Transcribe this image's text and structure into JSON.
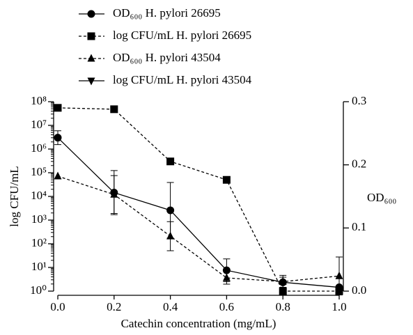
{
  "chart_data": {
    "type": "line",
    "xlabel": "Catechin concentration (mg/mL)",
    "ylabel": "log CFU/mL",
    "y2label": "OD₆₀₀",
    "x": [
      0,
      0.2,
      0.4,
      0.6,
      0.8,
      1.0
    ],
    "xlim": [
      0,
      1.0
    ],
    "xticks": [
      {
        "value": 0,
        "label": "0.0"
      },
      0.2,
      0.4,
      0.6,
      0.8,
      {
        "value": 1.0,
        "label": "1.0"
      }
    ],
    "ylog": true,
    "ylim": [
      1,
      100000000
    ],
    "yticks": [
      {
        "value": 1,
        "label": "10⁰"
      },
      {
        "value": 10,
        "label": "10¹"
      },
      {
        "value": 100,
        "label": "10²"
      },
      {
        "value": 1000,
        "label": "10³"
      },
      {
        "value": 10000,
        "label": "10⁴"
      },
      {
        "value": 100000,
        "label": "10⁵"
      },
      {
        "value": 1000000,
        "label": "10⁶"
      },
      {
        "value": 10000000,
        "label": "10⁷"
      },
      {
        "value": 100000000,
        "label": "10⁸"
      }
    ],
    "y2lim": [
      0,
      0.3
    ],
    "y2ticks": [
      {
        "value": 0,
        "label": "0.0"
      },
      0.1,
      0.2,
      0.3
    ],
    "series": [
      {
        "name": "OD₆₀₀ H. pylori 26695",
        "color": "#000000",
        "marker": "circle",
        "dashed": false,
        "axis": "y2",
        "values": [
          0.243,
          0.156,
          0.128,
          0.033,
          0.014,
          0.006
        ],
        "errors": [
          0.011,
          0.035,
          0.044,
          0.018,
          0.008,
          0
        ]
      },
      {
        "name": "log CFU/mL H. pylori 26695",
        "color": "#000000",
        "marker": "square",
        "dashed": true,
        "values": [
          55000000,
          48000000,
          300000,
          50000,
          1,
          1
        ]
      },
      {
        "name": "OD₆₀₀ H. pylori 43504",
        "color": "#000000",
        "marker": "triangle",
        "dashed": true,
        "axis": "y2",
        "values": [
          0.182,
          0.153,
          0.087,
          0.021,
          0.015,
          0.024
        ],
        "errors": [
          0,
          0.03,
          0.023,
          0.01,
          0.01,
          0.03
        ]
      },
      {
        "name": "log CFU/mL H. pylori 43504",
        "color": "#000000",
        "marker": "triangle-down",
        "dashed": false,
        "values": [
          null,
          null,
          null,
          null,
          null,
          null
        ]
      }
    ]
  }
}
